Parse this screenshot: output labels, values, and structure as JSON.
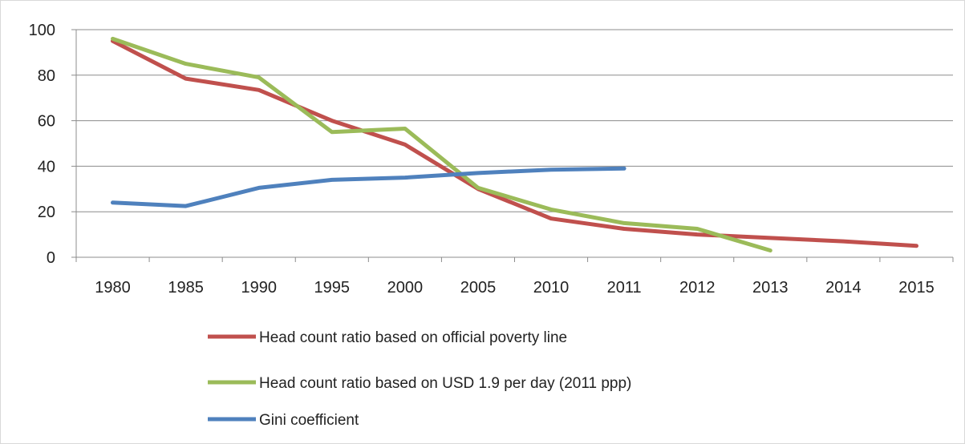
{
  "chart_data": {
    "type": "line",
    "categories": [
      "1980",
      "1985",
      "1990",
      "1995",
      "2000",
      "2005",
      "2010",
      "2011",
      "2012",
      "2013",
      "2014",
      "2015"
    ],
    "title": "",
    "xlabel": "",
    "ylabel": "",
    "ylim": [
      0,
      100
    ],
    "yticks": [
      0,
      20,
      40,
      60,
      80,
      100
    ],
    "grid": true,
    "legend_position": "bottom",
    "series": [
      {
        "name": "Head count ratio based on official poverty line",
        "color": "#c0504d",
        "values": [
          95,
          78.5,
          73.5,
          60,
          49.5,
          30,
          17,
          12.5,
          10,
          8.5,
          7,
          5
        ]
      },
      {
        "name": "Head count ratio based on USD 1.9 per day (2011 ppp)",
        "color": "#9bbb59",
        "values": [
          96,
          85,
          79,
          55,
          56.5,
          30.5,
          21,
          15,
          12.5,
          3,
          null,
          null
        ]
      },
      {
        "name": "Gini coefficient",
        "color": "#4f81bd",
        "values": [
          24,
          22.5,
          30.5,
          34,
          35,
          37,
          38.5,
          39,
          null,
          null,
          null,
          null
        ]
      }
    ]
  }
}
